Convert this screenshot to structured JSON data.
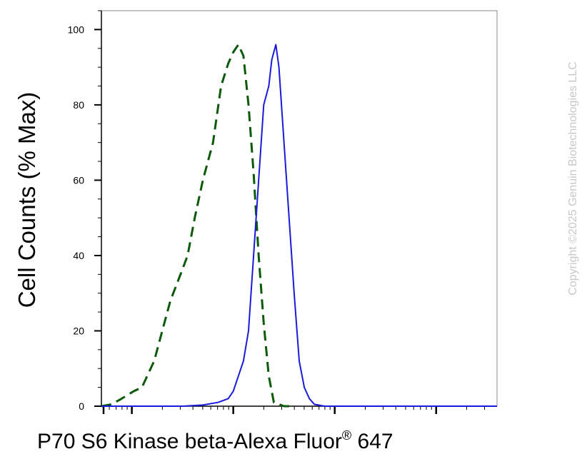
{
  "chart_data": {
    "type": "line",
    "title": "",
    "ylabel": "Cell Counts (% Max)",
    "xlabel": {
      "text": "P70 S6 Kinase beta-Alexa Fluor",
      "superscript": "®",
      "suffix": "647"
    },
    "ylim": [
      0,
      105
    ],
    "xscale": "log",
    "xlim": [
      -1.3,
      2.6
    ],
    "yticks": [
      0,
      20,
      40,
      60,
      80,
      100
    ],
    "ytick_labels": [
      "0",
      "20",
      "40",
      "60",
      "80",
      "100"
    ],
    "grid": false,
    "legend": "none",
    "series": [
      {
        "color": "#0a5a0a",
        "style": "dashed",
        "x": [
          -1.3,
          -1.2,
          -1.1,
          -0.98,
          -0.9,
          -0.78,
          -0.7,
          -0.62,
          -0.52,
          -0.45,
          -0.38,
          -0.3,
          -0.2,
          -0.12,
          -0.05,
          0.0,
          0.05,
          0.1,
          0.15,
          0.2,
          0.25,
          0.3,
          0.35,
          0.4,
          0.5,
          0.6
        ],
        "y": [
          0,
          0.5,
          2,
          4,
          5,
          12,
          20,
          28,
          35,
          40,
          50,
          60,
          70,
          85,
          91,
          94,
          96,
          93,
          80,
          62,
          40,
          22,
          8,
          1,
          0,
          0
        ]
      },
      {
        "color": "#1a1adc",
        "style": "solid",
        "x": [
          -1.3,
          -0.5,
          -0.3,
          -0.15,
          -0.05,
          0.0,
          0.05,
          0.1,
          0.15,
          0.2,
          0.25,
          0.3,
          0.35,
          0.38,
          0.42,
          0.45,
          0.5,
          0.55,
          0.6,
          0.65,
          0.7,
          0.75,
          0.8,
          0.9,
          1.0,
          1.5,
          2.0,
          2.6
        ],
        "y": [
          0,
          0,
          0.3,
          1,
          2,
          4,
          8,
          12,
          20,
          40,
          60,
          80,
          85,
          92,
          96,
          90,
          70,
          50,
          30,
          12,
          5,
          2,
          0.5,
          0,
          0,
          0,
          0,
          0
        ]
      }
    ]
  },
  "copyright": "Copyright ©2025 Genuin Biotechnologies LLC"
}
